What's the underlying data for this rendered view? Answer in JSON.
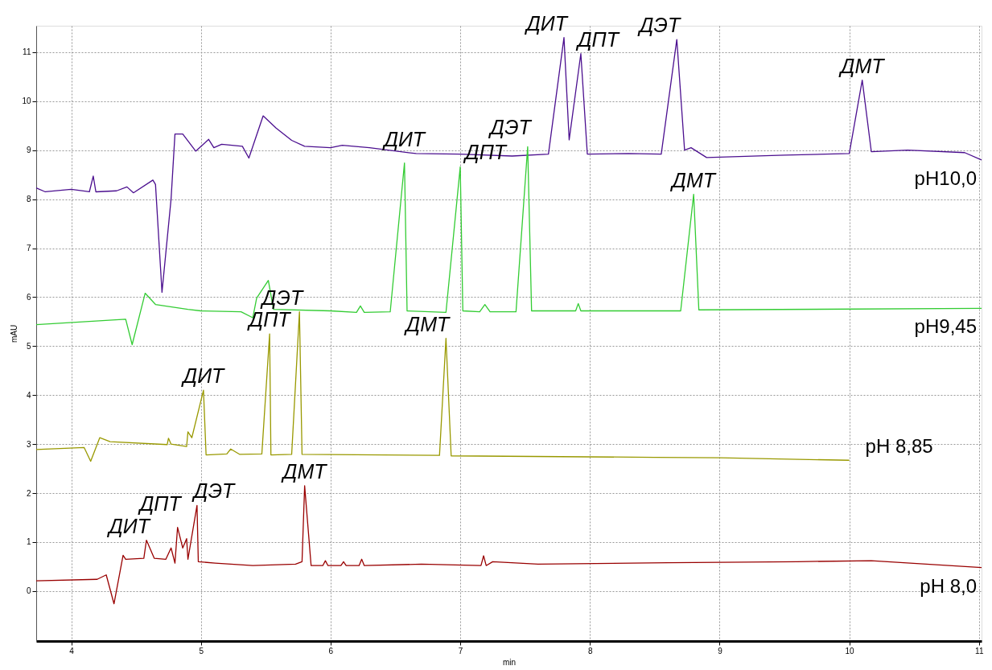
{
  "chart_data": {
    "type": "line",
    "xlabel": "min",
    "ylabel": "mAU",
    "xlim": [
      3.73,
      11.02
    ],
    "ylim": [
      -1.02,
      11.54
    ],
    "xticks": [
      4,
      5,
      6,
      7,
      8,
      9,
      10,
      11
    ],
    "yticks": [
      0,
      1,
      2,
      3,
      4,
      5,
      6,
      7,
      8,
      9,
      10,
      11
    ],
    "grid": true,
    "marker": "none",
    "line_style": "solid",
    "series": [
      {
        "name": "pH10,0",
        "color": "#4b0f8f",
        "x": [
          3.73,
          3.8,
          4.0,
          4.14,
          4.17,
          4.19,
          4.35,
          4.43,
          4.48,
          4.63,
          4.65,
          4.7,
          4.77,
          4.8,
          4.86,
          4.96,
          5.06,
          5.1,
          5.16,
          5.32,
          5.37,
          5.48,
          5.58,
          5.7,
          5.8,
          6.0,
          6.09,
          6.3,
          6.66,
          7.0,
          7.4,
          7.68,
          7.8,
          7.84,
          7.93,
          7.98,
          8.3,
          8.55,
          8.67,
          8.73,
          8.78,
          8.9,
          9.5,
          10.0,
          10.1,
          10.17,
          10.45,
          10.89,
          11.02
        ],
        "values": [
          8.23,
          8.15,
          8.2,
          8.15,
          8.47,
          8.15,
          8.17,
          8.25,
          8.13,
          8.39,
          8.3,
          6.1,
          8.0,
          9.33,
          9.33,
          8.98,
          9.22,
          9.05,
          9.12,
          9.08,
          8.84,
          9.7,
          9.45,
          9.2,
          9.08,
          9.05,
          9.1,
          9.05,
          8.93,
          8.92,
          8.88,
          8.92,
          11.3,
          9.21,
          10.97,
          8.92,
          8.93,
          8.92,
          11.26,
          9.0,
          9.05,
          8.85,
          8.9,
          8.93,
          10.43,
          8.97,
          9.0,
          8.95,
          8.8
        ]
      },
      {
        "name": "pH9,45",
        "color": "#33cc33",
        "x": [
          3.73,
          4.42,
          4.47,
          4.57,
          4.65,
          4.9,
          5.0,
          5.31,
          5.4,
          5.43,
          5.52,
          5.56,
          6.0,
          6.2,
          6.23,
          6.26,
          6.46,
          6.57,
          6.59,
          6.89,
          7.0,
          7.02,
          7.15,
          7.19,
          7.23,
          7.43,
          7.52,
          7.55,
          7.89,
          7.91,
          7.93,
          8.7,
          8.8,
          8.84,
          11.02
        ],
        "values": [
          5.44,
          5.55,
          5.03,
          6.08,
          5.85,
          5.75,
          5.72,
          5.7,
          5.58,
          5.98,
          6.34,
          5.75,
          5.72,
          5.69,
          5.82,
          5.69,
          5.7,
          8.74,
          5.72,
          5.69,
          8.66,
          5.72,
          5.7,
          5.85,
          5.7,
          5.7,
          9.07,
          5.72,
          5.72,
          5.87,
          5.72,
          5.72,
          8.1,
          5.74,
          5.77
        ]
      },
      {
        "name": "pH 8,85",
        "color": "#999900",
        "x": [
          3.73,
          4.1,
          4.15,
          4.22,
          4.3,
          4.74,
          4.75,
          4.77,
          4.89,
          4.9,
          4.93,
          5.02,
          5.04,
          5.2,
          5.23,
          5.3,
          5.47,
          5.53,
          5.54,
          5.7,
          5.76,
          5.78,
          6.84,
          6.89,
          6.93,
          8.5,
          9.0,
          10.0
        ],
        "values": [
          2.89,
          2.93,
          2.65,
          3.13,
          3.05,
          2.99,
          3.12,
          3.0,
          2.95,
          3.25,
          3.13,
          4.1,
          2.78,
          2.8,
          2.9,
          2.79,
          2.8,
          5.25,
          2.78,
          2.79,
          5.7,
          2.79,
          2.77,
          5.16,
          2.76,
          2.73,
          2.72,
          2.67
        ]
      },
      {
        "name": "pH 8,0",
        "color": "#990000",
        "x": [
          3.73,
          4.2,
          4.27,
          4.33,
          4.4,
          4.42,
          4.56,
          4.58,
          4.64,
          4.73,
          4.77,
          4.8,
          4.82,
          4.86,
          4.89,
          4.9,
          4.97,
          4.98,
          5.11,
          5.4,
          5.73,
          5.78,
          5.8,
          5.85,
          5.94,
          5.96,
          5.98,
          6.08,
          6.1,
          6.12,
          6.22,
          6.24,
          6.26,
          6.7,
          7.16,
          7.18,
          7.2,
          7.25,
          7.6,
          8.6,
          9.6,
          10.17,
          11.02
        ],
        "values": [
          0.21,
          0.24,
          0.33,
          -0.26,
          0.73,
          0.65,
          0.67,
          1.04,
          0.67,
          0.65,
          0.88,
          0.57,
          1.3,
          0.88,
          1.07,
          0.65,
          1.75,
          0.6,
          0.57,
          0.52,
          0.55,
          0.6,
          2.15,
          0.52,
          0.52,
          0.62,
          0.52,
          0.52,
          0.6,
          0.52,
          0.52,
          0.65,
          0.52,
          0.55,
          0.52,
          0.72,
          0.52,
          0.6,
          0.55,
          0.58,
          0.6,
          0.62,
          0.48
        ]
      }
    ],
    "annotations": [
      {
        "text": "ДИТ",
        "x": 7.8,
        "y": 11.3
      },
      {
        "text": "ДПТ",
        "x": 7.93,
        "y": 10.97
      },
      {
        "text": "ДЭТ",
        "x": 8.67,
        "y": 11.26
      },
      {
        "text": "ДМТ",
        "x": 10.1,
        "y": 10.43
      },
      {
        "text": "ДИТ",
        "x": 6.57,
        "y": 8.74
      },
      {
        "text": "ДПТ",
        "x": 7.0,
        "y": 8.66
      },
      {
        "text": "ДЭТ",
        "x": 7.52,
        "y": 9.07
      },
      {
        "text": "ДМТ",
        "x": 8.8,
        "y": 8.1
      },
      {
        "text": "ДИТ",
        "x": 5.02,
        "y": 4.1
      },
      {
        "text": "ДПТ",
        "x": 5.53,
        "y": 5.25
      },
      {
        "text": "ДЭТ",
        "x": 5.76,
        "y": 5.7
      },
      {
        "text": "ДМТ",
        "x": 6.89,
        "y": 5.16
      },
      {
        "text": "ДИТ",
        "x": 4.58,
        "y": 1.04
      },
      {
        "text": "ДПТ",
        "x": 4.82,
        "y": 1.3
      },
      {
        "text": "ДЭТ",
        "x": 4.97,
        "y": 1.75
      },
      {
        "text": "ДМТ",
        "x": 5.8,
        "y": 2.15
      }
    ]
  }
}
